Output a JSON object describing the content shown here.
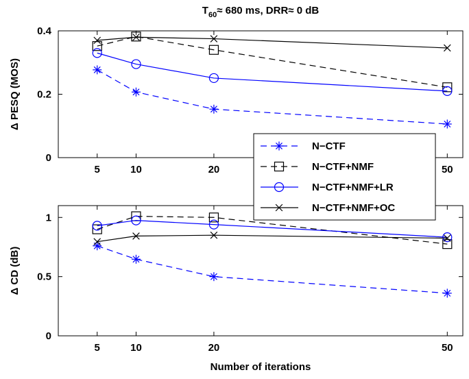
{
  "figure": {
    "title_main": "T",
    "title_sub": "60",
    "title_rest": "≈ 680 ms, DRR≈ 0 dB",
    "xlabel": "Number of iterations"
  },
  "legend": {
    "placement": "center-right, overlapping top panel",
    "entries": [
      {
        "label": "N−CTF",
        "color": "#0000ff",
        "dash": "dashed",
        "marker": "asterisk"
      },
      {
        "label": "N−CTF+NMF",
        "color": "#000000",
        "dash": "dashed",
        "marker": "square"
      },
      {
        "label": "N−CTF+NMF+LR",
        "color": "#0000ff",
        "dash": "solid",
        "marker": "circle"
      },
      {
        "label": "N−CTF+NMF+OC",
        "color": "#000000",
        "dash": "solid",
        "marker": "x"
      }
    ]
  },
  "chart_data": [
    {
      "type": "line",
      "title": "T60≈ 680 ms, DRR≈ 0 dB",
      "xlabel": "",
      "ylabel": "Δ PESQ (MOS)",
      "x": [
        5,
        10,
        20,
        50
      ],
      "xticks": [
        "5",
        "10",
        "20",
        "50"
      ],
      "xlim": [
        0,
        52
      ],
      "ylim": [
        0,
        0.4
      ],
      "yticks": [
        "0",
        "0.2",
        "0.4"
      ],
      "ytick_values": [
        0,
        0.2,
        0.4
      ],
      "grid": false,
      "series": [
        {
          "name": "N−CTF",
          "values": [
            0.277,
            0.207,
            0.153,
            0.106
          ]
        },
        {
          "name": "N−CTF+NMF",
          "values": [
            0.352,
            0.382,
            0.34,
            0.222
          ]
        },
        {
          "name": "N−CTF+NMF+LR",
          "values": [
            0.33,
            0.295,
            0.251,
            0.21
          ]
        },
        {
          "name": "N−CTF+NMF+OC",
          "values": [
            0.37,
            0.38,
            0.375,
            0.346
          ]
        }
      ]
    },
    {
      "type": "line",
      "xlabel": "Number of iterations",
      "ylabel": "Δ CD (dB)",
      "x": [
        5,
        10,
        20,
        50
      ],
      "xticks": [
        "5",
        "10",
        "20",
        "50"
      ],
      "xlim": [
        0,
        52
      ],
      "ylim": [
        0,
        1.1
      ],
      "yticks": [
        "0",
        "0.5",
        "1"
      ],
      "ytick_values": [
        0,
        0.5,
        1
      ],
      "grid": false,
      "series": [
        {
          "name": "N−CTF",
          "values": [
            0.76,
            0.647,
            0.5,
            0.36
          ]
        },
        {
          "name": "N−CTF+NMF",
          "values": [
            0.9,
            1.01,
            1.0,
            0.775
          ]
        },
        {
          "name": "N−CTF+NMF+LR",
          "values": [
            0.93,
            0.975,
            0.94,
            0.833
          ]
        },
        {
          "name": "N−CTF+NMF+OC",
          "values": [
            0.795,
            0.843,
            0.85,
            0.825
          ]
        }
      ]
    }
  ]
}
